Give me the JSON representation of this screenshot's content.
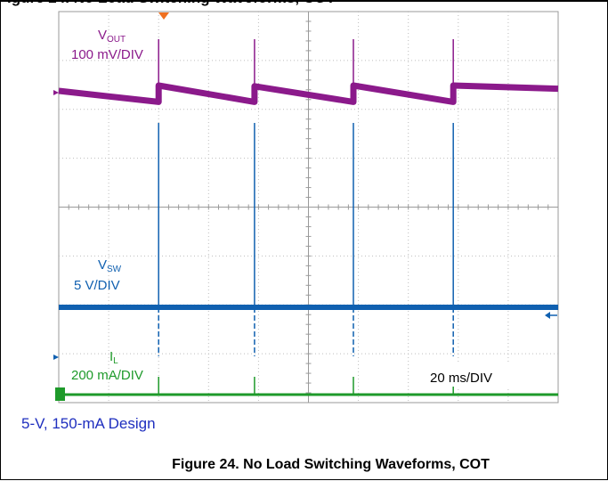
{
  "header": {
    "text": "igure 24. No Load Switching Waveforms, COT"
  },
  "design_label": "5-V, 150-mA Design",
  "caption": "Figure 24. No Load Switching Waveforms, COT",
  "chart_data": {
    "type": "line",
    "title": "Figure 24. No Load Switching Waveforms, COT",
    "timebase": "20 ms/DIV",
    "grid": true,
    "x_divisions": 10,
    "y_divisions": 8,
    "series": [
      {
        "name": "VOUT",
        "label_main": "V",
        "label_sub": "OUT",
        "scale": "100 mV/DIV",
        "color": "#8b1a8b",
        "x": [
          0,
          2.0,
          2.0,
          3.92,
          3.92,
          5.9,
          5.9,
          7.9,
          7.9,
          10.0
        ],
        "y": [
          0.0,
          -0.31,
          0.15,
          -0.31,
          0.13,
          -0.31,
          0.15,
          -0.31,
          0.15,
          0.06
        ]
      },
      {
        "name": "VSW",
        "label_main": "V",
        "label_sub": "SW",
        "scale": "5 V/DIV",
        "color": "#1060b0",
        "spike_times": [
          2.0,
          3.92,
          5.9,
          7.9
        ],
        "x": [
          0,
          10.0
        ],
        "y": [
          0,
          0
        ]
      },
      {
        "name": "IL",
        "label_main": "I",
        "label_sub": "L",
        "scale": "200 mA/DIV",
        "color": "#1e9a2a",
        "spike_times": [
          2.0,
          3.92,
          5.9,
          7.9
        ],
        "x": [
          0,
          10.0
        ],
        "y": [
          0,
          0
        ]
      }
    ]
  }
}
